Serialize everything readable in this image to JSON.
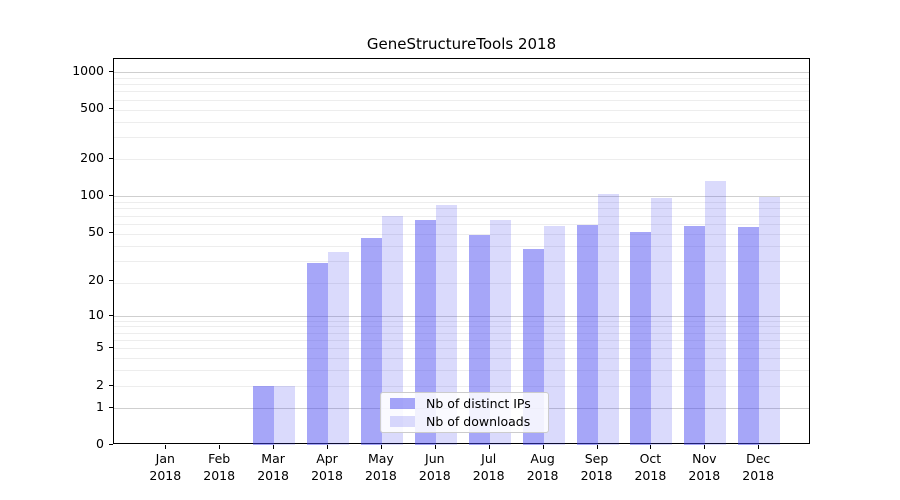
{
  "chart_data": {
    "type": "bar",
    "title": "GeneStructureTools 2018",
    "xlabel": "",
    "ylabel": "",
    "categories": [
      "Jan 2018",
      "Feb 2018",
      "Mar 2018",
      "Apr 2018",
      "May 2018",
      "Jun 2018",
      "Jul 2018",
      "Aug 2018",
      "Sep 2018",
      "Oct 2018",
      "Nov 2018",
      "Dec 2018"
    ],
    "series": [
      {
        "name": "Nb of distinct IPs",
        "color": "rgba(70,70,240,0.48)",
        "color_hex_on_white": "#a6a6f8",
        "values": [
          0,
          0,
          2,
          28,
          45,
          64,
          48,
          37,
          58,
          51,
          57,
          56
        ]
      },
      {
        "name": "Nb of downloads",
        "color": "rgba(70,70,240,0.20)",
        "color_hex_on_white": "#dadafc",
        "values": [
          0,
          0,
          2,
          35,
          68,
          85,
          64,
          57,
          104,
          96,
          131,
          98
        ]
      }
    ],
    "yscale": "log1p",
    "yticks": [
      0,
      1,
      2,
      5,
      10,
      20,
      50,
      100,
      200,
      500,
      1000
    ],
    "ylim": [
      0,
      1280
    ],
    "major_gridlines": [
      1,
      10,
      100,
      1000
    ],
    "minor_gridlines": [
      2,
      3,
      4,
      5,
      6,
      7,
      8,
      9,
      19,
      29,
      39,
      49,
      59,
      69,
      79,
      89,
      199,
      299,
      399,
      499,
      599,
      699,
      799,
      899
    ],
    "grid": "horizontal",
    "legend_position": "lower center"
  },
  "colors": {
    "bar_distinct_ips": "rgba(70,70,240,0.48)",
    "bar_downloads": "rgba(70,70,240,0.20)",
    "major_grid": "#cfcfcf",
    "minor_grid": "#ededed",
    "axis": "#000000",
    "legend_border": "#cccccc"
  }
}
